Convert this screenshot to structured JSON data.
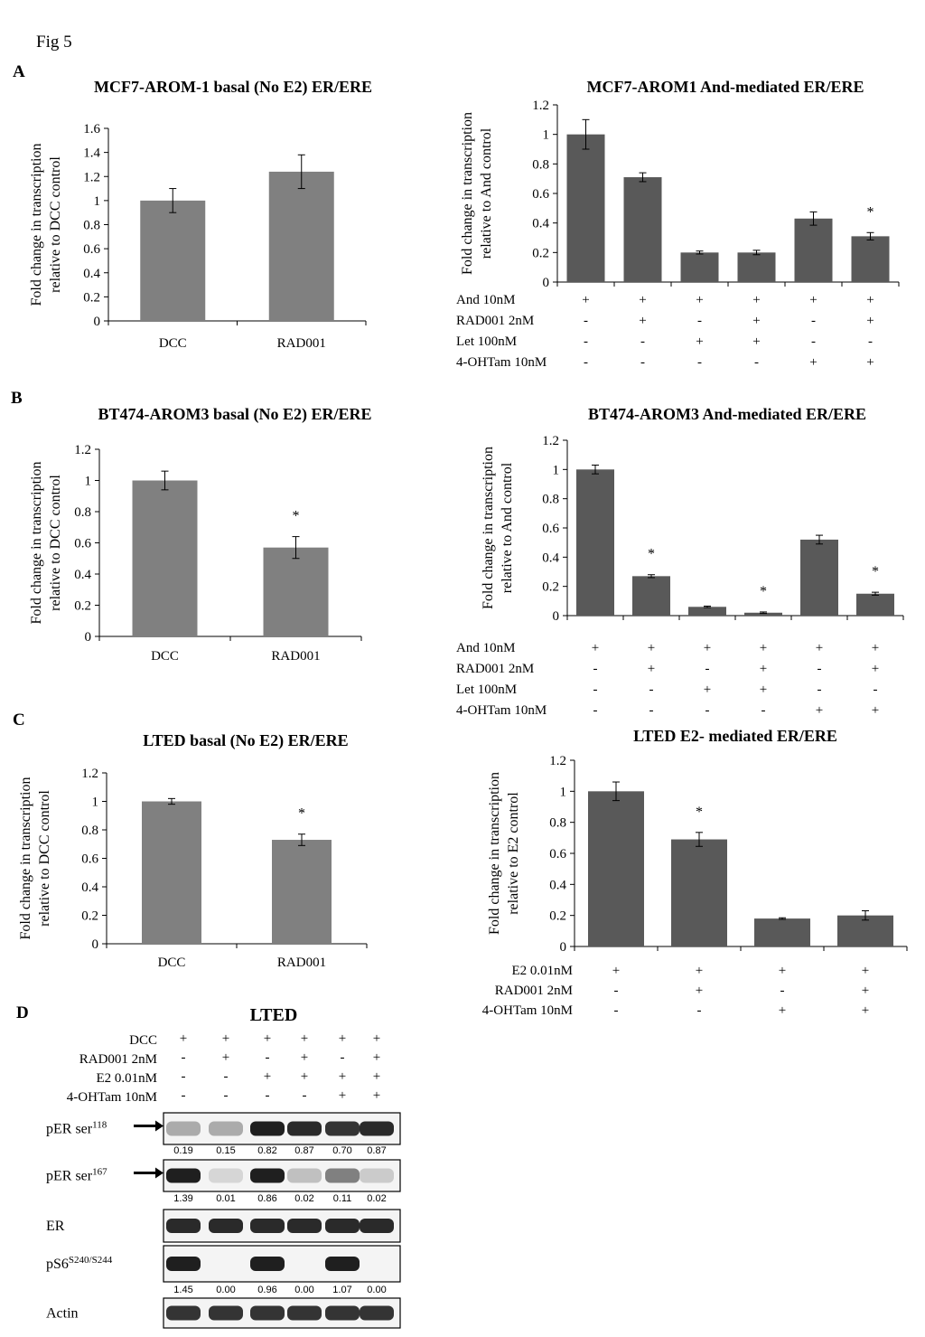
{
  "figure_label": "Fig 5",
  "panel_letters": {
    "A": "A",
    "B": "B",
    "C": "C",
    "D": "D"
  },
  "charts": [
    {
      "id": "a1",
      "type": "bar",
      "title": "MCF7-AROM-1 basal (No E2) ER/ERE",
      "ylabel_lines": [
        "Fold change in transcription",
        "relative to DCC control"
      ],
      "categories": [
        "DCC",
        "RAD001"
      ],
      "values": [
        1.0,
        1.24
      ],
      "errors": [
        0.1,
        0.14
      ],
      "significant": [
        false,
        false
      ],
      "ylim": [
        0,
        1.6
      ],
      "yticks": [
        "0",
        "0.2",
        "0.4",
        "0.6",
        "0.8",
        "1",
        "1.2",
        "1.4",
        "1.6"
      ],
      "color": "#808080",
      "condition_rows": []
    },
    {
      "id": "a2",
      "type": "bar",
      "title": "MCF7-AROM1 And-mediated  ER/ERE",
      "ylabel_lines": [
        "Fold change in transcription",
        "relative to And control"
      ],
      "categories": [],
      "values": [
        1.0,
        0.71,
        0.2,
        0.2,
        0.43,
        0.31
      ],
      "errors": [
        0.1,
        0.03,
        0.01,
        0.015,
        0.045,
        0.025
      ],
      "significant": [
        false,
        false,
        false,
        false,
        false,
        true
      ],
      "ylim": [
        0,
        1.2
      ],
      "yticks": [
        "0",
        "0.2",
        "0.4",
        "0.6",
        "0.8",
        "1",
        "1.2"
      ],
      "color": "#595959",
      "condition_rows": [
        {
          "label": "And 10nM",
          "marks": [
            "+",
            "+",
            "+",
            "+",
            "+",
            "+"
          ]
        },
        {
          "label": "RAD001 2nM",
          "marks": [
            "-",
            "+",
            "-",
            "+",
            "-",
            "+"
          ]
        },
        {
          "label": "Let 100nM",
          "marks": [
            "-",
            "-",
            "+",
            "+",
            "-",
            "-"
          ]
        },
        {
          "label": "4-OHTam 10nM",
          "marks": [
            "-",
            "-",
            "-",
            "-",
            "+",
            "+"
          ]
        }
      ]
    },
    {
      "id": "b1",
      "type": "bar",
      "title": "BT474-AROM3 basal (No E2) ER/ERE",
      "ylabel_lines": [
        "Fold change in transcription",
        "relative to DCC control"
      ],
      "categories": [
        "DCC",
        "RAD001"
      ],
      "values": [
        1.0,
        0.57
      ],
      "errors": [
        0.06,
        0.07
      ],
      "significant": [
        false,
        true
      ],
      "ylim": [
        0,
        1.2
      ],
      "yticks": [
        "0",
        "0.2",
        "0.4",
        "0.6",
        "0.8",
        "1",
        "1.2"
      ],
      "color": "#808080",
      "condition_rows": []
    },
    {
      "id": "b2",
      "type": "bar",
      "title": "BT474-AROM3 And-mediated  ER/ERE",
      "ylabel_lines": [
        "Fold change in transcription",
        "relative to And control"
      ],
      "categories": [],
      "values": [
        1.0,
        0.27,
        0.06,
        0.02,
        0.52,
        0.15
      ],
      "errors": [
        0.03,
        0.01,
        0.005,
        0.005,
        0.03,
        0.01
      ],
      "significant": [
        false,
        true,
        false,
        true,
        false,
        true
      ],
      "ylim": [
        0,
        1.2
      ],
      "yticks": [
        "0",
        "0.2",
        "0.4",
        "0.6",
        "0.8",
        "1",
        "1.2"
      ],
      "color": "#595959",
      "condition_rows": [
        {
          "label": "And 10nM",
          "marks": [
            "+",
            "+",
            "+",
            "+",
            "+",
            "+"
          ]
        },
        {
          "label": "RAD001 2nM",
          "marks": [
            "-",
            "+",
            "-",
            "+",
            "-",
            "+"
          ]
        },
        {
          "label": "Let 100nM",
          "marks": [
            "-",
            "-",
            "+",
            "+",
            "-",
            "-"
          ]
        },
        {
          "label": "4-OHTam 10nM",
          "marks": [
            "-",
            "-",
            "-",
            "-",
            "+",
            "+"
          ]
        }
      ]
    },
    {
      "id": "c1",
      "type": "bar",
      "title": "LTED basal (No E2) ER/ERE",
      "ylabel_lines": [
        "Fold change in transcription",
        "relative to DCC control"
      ],
      "categories": [
        "DCC",
        "RAD001"
      ],
      "values": [
        1.0,
        0.73
      ],
      "errors": [
        0.02,
        0.04
      ],
      "significant": [
        false,
        true
      ],
      "ylim": [
        0,
        1.2
      ],
      "yticks": [
        "0",
        "0.2",
        "0.4",
        "0.6",
        "0.8",
        "1",
        "1.2"
      ],
      "color": "#808080",
      "condition_rows": []
    },
    {
      "id": "c2",
      "type": "bar",
      "title": "LTED E2- mediated ER/ERE",
      "ylabel_lines": [
        "Fold change in transcription",
        "relative to E2 control"
      ],
      "categories": [],
      "values": [
        1.0,
        0.69,
        0.18,
        0.2
      ],
      "errors": [
        0.06,
        0.045,
        0.005,
        0.03
      ],
      "significant": [
        false,
        true,
        false,
        false
      ],
      "ylim": [
        0,
        1.2
      ],
      "yticks": [
        "0",
        "0.2",
        "0.4",
        "0.6",
        "0.8",
        "1",
        "1.2"
      ],
      "color": "#595959",
      "condition_rows": [
        {
          "label": "E2 0.01nM",
          "marks": [
            "+",
            "+",
            "+",
            "+"
          ]
        },
        {
          "label": "RAD001 2nM",
          "marks": [
            "-",
            "+",
            "-",
            "+"
          ]
        },
        {
          "label": "4-OHTam 10nM",
          "marks": [
            "-",
            "-",
            "+",
            "+"
          ]
        }
      ]
    }
  ],
  "western": {
    "title": "LTED",
    "condition_rows": [
      {
        "label": "DCC",
        "marks": [
          "+",
          "+",
          "+",
          "+",
          "+",
          "+"
        ]
      },
      {
        "label": "RAD001 2nM",
        "marks": [
          "-",
          "+",
          "-",
          "+",
          "-",
          "+"
        ]
      },
      {
        "label": "E2 0.01nM",
        "marks": [
          "-",
          "-",
          "+",
          "+",
          "+",
          "+"
        ]
      },
      {
        "label": "4-OHTam 10nM",
        "marks": [
          "-",
          "-",
          "-",
          "-",
          "+",
          "+"
        ]
      }
    ],
    "blots": [
      {
        "label": "pER ser",
        "sup": "118",
        "arrow": true,
        "values": [
          "0.19",
          "0.15",
          "0.82",
          "0.87",
          "0.70",
          "0.87"
        ],
        "intensity": [
          0.3,
          0.3,
          0.95,
          0.9,
          0.85,
          0.9
        ]
      },
      {
        "label": "pER ser",
        "sup": "167",
        "arrow": true,
        "values": [
          "1.39",
          "0.01",
          "0.86",
          "0.02",
          "0.11",
          "0.02"
        ],
        "intensity": [
          0.95,
          0.1,
          0.95,
          0.2,
          0.5,
          0.15
        ]
      },
      {
        "label": "ER",
        "sup": "",
        "arrow": false,
        "values": [],
        "intensity": [
          0.9,
          0.9,
          0.9,
          0.9,
          0.9,
          0.9
        ]
      },
      {
        "label": "pS6",
        "sup": "S240/S244",
        "arrow": false,
        "values": [
          "1.45",
          "0.00",
          "0.96",
          "0.00",
          "1.07",
          "0.00"
        ],
        "intensity": [
          0.95,
          0,
          0.95,
          0,
          0.95,
          0
        ]
      },
      {
        "label": "Actin",
        "sup": "",
        "arrow": false,
        "values": [],
        "intensity": [
          0.85,
          0.85,
          0.85,
          0.85,
          0.85,
          0.85
        ]
      }
    ]
  }
}
